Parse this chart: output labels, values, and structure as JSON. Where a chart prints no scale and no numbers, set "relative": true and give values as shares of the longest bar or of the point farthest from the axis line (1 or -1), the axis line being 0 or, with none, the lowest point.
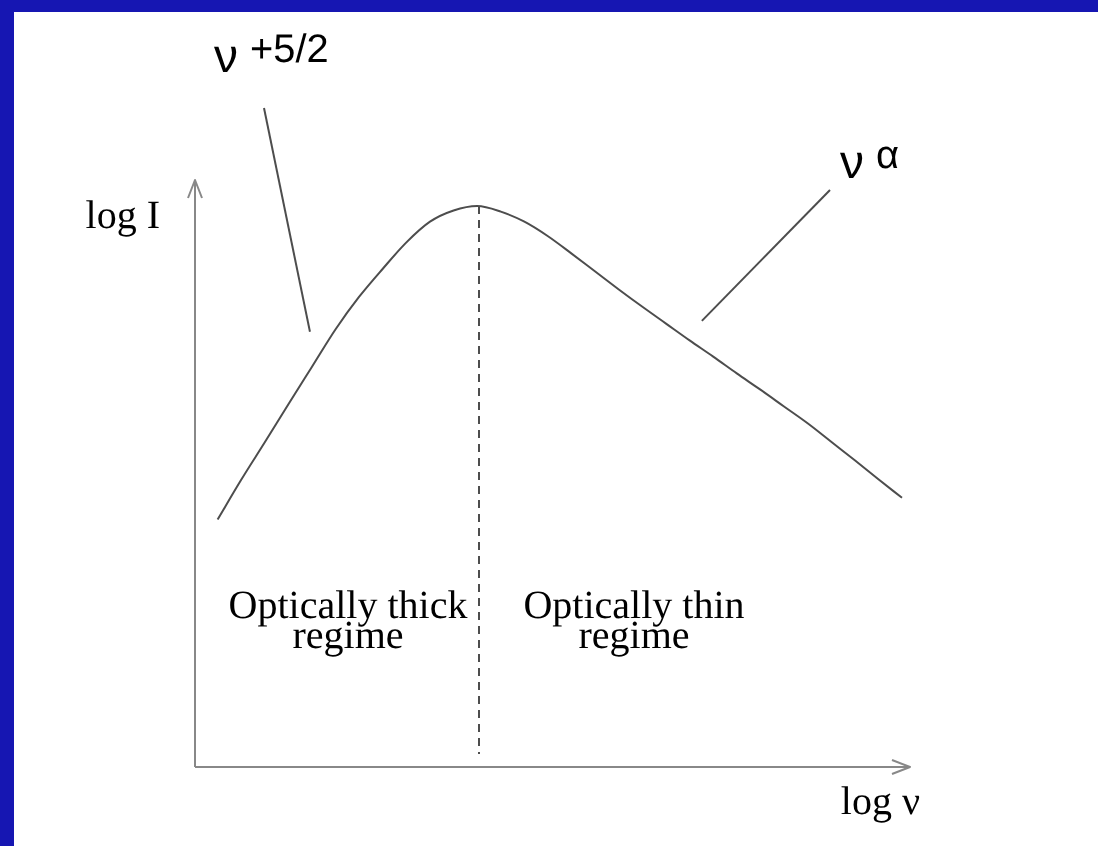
{
  "chart_data": {
    "type": "line",
    "relative": true,
    "xlabel": "log ν",
    "ylabel": "log I",
    "categories": [
      null,
      null,
      null,
      null,
      null,
      null,
      null,
      null,
      null,
      null,
      null,
      null,
      null,
      null,
      null,
      null,
      null,
      null,
      null,
      null,
      null,
      null,
      null,
      null,
      null,
      null,
      null,
      null,
      null,
      null,
      null
    ],
    "series": [
      {
        "color": "#4d4d4d",
        "values": [
          null,
          0.44,
          0.511,
          0.578,
          0.646,
          0.713,
          0.78,
          0.838,
          0.888,
          0.935,
          0.972,
          0.992,
          1,
          0.99,
          0.972,
          0.946,
          0.915,
          0.883,
          0.851,
          0.82,
          0.79,
          0.76,
          0.731,
          0.701,
          0.672,
          0.642,
          0.612,
          0.579,
          0.546,
          0.512,
          0.479
        ]
      }
    ],
    "annotations": [
      "ν$^{+5/2}$",
      "ν$^{α}$",
      "Optically thick regime",
      "Optically thin regime"
    ]
  }
}
